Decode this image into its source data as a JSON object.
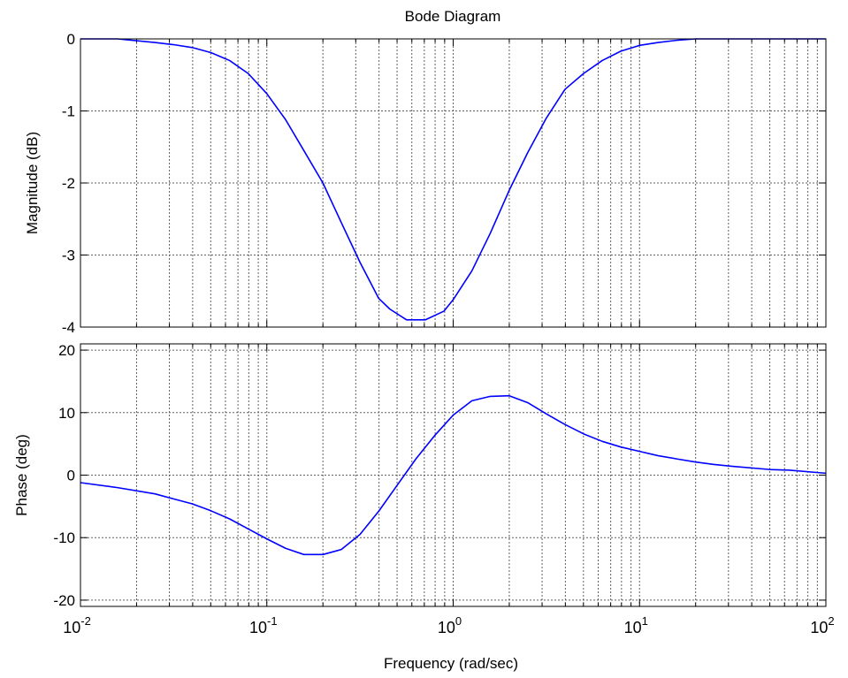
{
  "title": "Bode Diagram",
  "xlabel": "Frequency  (rad/sec)",
  "colors": {
    "line": "#0000ff",
    "grid": "#606060",
    "axes": "#000000",
    "background": "#ffffff"
  },
  "chart_data": [
    {
      "type": "line",
      "ylabel": "Magnitude (dB)",
      "xscale": "log",
      "xlim": [
        0.01,
        100
      ],
      "ylim": [
        -4,
        0
      ],
      "yticks": [
        "0",
        "-1",
        "-2",
        "-3",
        "-4"
      ],
      "ytick_values": [
        0,
        -1,
        -2,
        -3,
        -4
      ],
      "grid": true,
      "series": [
        {
          "x": [
            0.01,
            0.0158,
            0.0251,
            0.0316,
            0.0398,
            0.0501,
            0.0631,
            0.0794,
            0.1,
            0.126,
            0.158,
            0.2,
            0.251,
            0.316,
            0.398,
            0.457,
            0.562,
            0.708,
            0.891,
            1.0,
            1.26,
            1.58,
            2.0,
            2.51,
            3.16,
            3.98,
            5.01,
            6.31,
            7.94,
            10,
            12.6,
            15.8,
            20,
            25.1,
            31.6,
            50,
            100
          ],
          "y": [
            0,
            0,
            -0.05,
            -0.08,
            -0.12,
            -0.19,
            -0.3,
            -0.48,
            -0.76,
            -1.12,
            -1.55,
            -2.0,
            -2.55,
            -3.1,
            -3.6,
            -3.75,
            -3.9,
            -3.9,
            -3.78,
            -3.62,
            -3.22,
            -2.7,
            -2.1,
            -1.58,
            -1.1,
            -0.7,
            -0.48,
            -0.3,
            -0.17,
            -0.09,
            -0.05,
            -0.02,
            0,
            0,
            0,
            0,
            0
          ]
        }
      ]
    },
    {
      "type": "line",
      "ylabel": "Phase (deg)",
      "xscale": "log",
      "xlim": [
        0.01,
        100
      ],
      "ylim": [
        -21,
        21
      ],
      "yticks": [
        "20",
        "10",
        "0",
        "-10",
        "-20"
      ],
      "ytick_values": [
        20,
        10,
        0,
        -10,
        -20
      ],
      "xticks": [
        {
          "base": "10",
          "exp": "-2",
          "value": 0.01
        },
        {
          "base": "10",
          "exp": "-1",
          "value": 0.1
        },
        {
          "base": "10",
          "exp": "0",
          "value": 1
        },
        {
          "base": "10",
          "exp": "1",
          "value": 10
        },
        {
          "base": "10",
          "exp": "2",
          "value": 100
        }
      ],
      "grid": true,
      "series": [
        {
          "x": [
            0.01,
            0.0158,
            0.0251,
            0.0316,
            0.0398,
            0.0501,
            0.0631,
            0.0794,
            0.1,
            0.126,
            0.158,
            0.2,
            0.251,
            0.316,
            0.398,
            0.501,
            0.631,
            0.794,
            1.0,
            1.26,
            1.58,
            2.0,
            2.51,
            3.16,
            3.98,
            5.01,
            6.31,
            7.94,
            10,
            12.6,
            15.8,
            20,
            25.1,
            31.6,
            50,
            63.1,
            100
          ],
          "y": [
            -1.2,
            -2.0,
            -3.0,
            -3.8,
            -4.6,
            -5.7,
            -7.0,
            -8.6,
            -10.2,
            -11.7,
            -12.7,
            -12.7,
            -11.9,
            -9.5,
            -5.8,
            -1.6,
            2.6,
            6.3,
            9.6,
            11.9,
            12.6,
            12.7,
            11.6,
            9.8,
            8.1,
            6.6,
            5.4,
            4.5,
            3.8,
            3.1,
            2.6,
            2.1,
            1.7,
            1.4,
            0.9,
            0.8,
            0.3
          ]
        }
      ]
    }
  ]
}
